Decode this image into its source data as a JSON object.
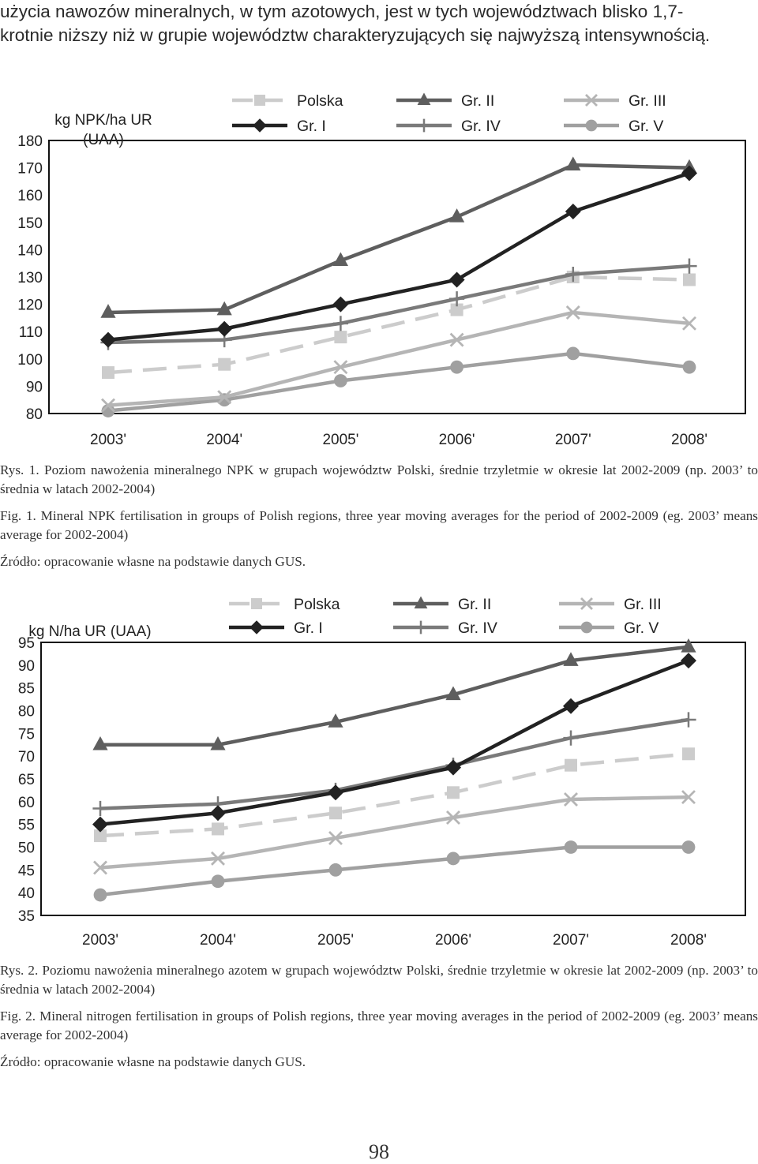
{
  "intro": {
    "line1": "użycia nawozów mineralnych, w tym azotowych, jest w tych województwach blisko 1,7-",
    "line2": "krotnie niższy niż w grupie województw charakteryzujących się najwyższą intensywnością."
  },
  "caption1": {
    "pl": "Rys. 1. Poziom nawożenia mineralnego NPK w grupach województw Polski, średnie trzyletmie w okresie lat 2002-2009 (np. 2003’ to średnia w latach 2002-2004)",
    "en": "Fig. 1. Mineral NPK fertilisation in groups of Polish regions, three year moving averages for the period of 2002-2009 (eg. 2003’ means average for 2002-2004)",
    "source": "Źródło: opracowanie własne na podstawie danych GUS."
  },
  "caption2": {
    "pl": "Rys. 2. Poziomu nawożenia mineralnego azotem w grupach województw Polski, średnie trzyletmie w okresie lat 2002-2009 (np. 2003’ to średnia w latach 2002-2004)",
    "en": "Fig. 2. Mineral nitrogen fertilisation in groups of Polish regions, three year moving averages in the period of 2002-2009 (eg. 2003’ means average for 2002-2004)",
    "source": "Źródło: opracowanie własne na podstawie danych GUS."
  },
  "page_number": "98",
  "series_style": [
    {
      "color": "#cccccc",
      "marker": "square",
      "dash": true
    },
    {
      "color": "#222222",
      "marker": "diamond",
      "dash": false
    },
    {
      "color": "#5e5e5e",
      "marker": "triangle",
      "dash": false
    },
    {
      "color": "#7a7a7a",
      "marker": "plus",
      "dash": false
    },
    {
      "color": "#b5b5b5",
      "marker": "x",
      "dash": false
    },
    {
      "color": "#a0a0a0",
      "marker": "circle",
      "dash": false
    }
  ],
  "chart_data": [
    {
      "type": "line",
      "ylabel_line1": "kg NPK/ha UR",
      "ylabel_line2": "(UAA)",
      "ylim": [
        80,
        180
      ],
      "yticks": [
        80,
        90,
        100,
        110,
        120,
        130,
        140,
        150,
        160,
        170,
        180
      ],
      "categories": [
        "2003'",
        "2004'",
        "2005'",
        "2006'",
        "2007'",
        "2008'"
      ],
      "grid": false,
      "legend": "top",
      "series": [
        {
          "name": "Polska",
          "values": [
            95,
            98,
            108,
            118,
            130,
            129
          ]
        },
        {
          "name": "Gr. I",
          "values": [
            107,
            111,
            120,
            129,
            154,
            168
          ]
        },
        {
          "name": "Gr. II",
          "values": [
            117,
            118,
            136,
            152,
            171,
            170
          ]
        },
        {
          "name": "Gr. IV",
          "values": [
            106,
            107,
            113,
            122,
            131,
            134
          ]
        },
        {
          "name": "Gr. III",
          "values": [
            83,
            86,
            97,
            107,
            117,
            113
          ]
        },
        {
          "name": "Gr. V",
          "values": [
            81,
            85,
            92,
            97,
            102,
            97
          ]
        }
      ]
    },
    {
      "type": "line",
      "ylabel_line1": "kg N/ha UR (UAA)",
      "ylabel_line2": "",
      "ylim": [
        35,
        95
      ],
      "yticks": [
        35,
        40,
        45,
        50,
        55,
        60,
        65,
        70,
        75,
        80,
        85,
        90,
        95
      ],
      "categories": [
        "2003'",
        "2004'",
        "2005'",
        "2006'",
        "2007'",
        "2008'"
      ],
      "grid": false,
      "legend": "top",
      "series": [
        {
          "name": "Polska",
          "values": [
            52.5,
            54,
            57.5,
            62,
            68,
            70.5
          ]
        },
        {
          "name": "Gr. I",
          "values": [
            55,
            57.5,
            62,
            67.5,
            81,
            91
          ]
        },
        {
          "name": "Gr. II",
          "values": [
            72.5,
            72.5,
            77.5,
            83.5,
            91,
            94
          ]
        },
        {
          "name": "Gr. IV",
          "values": [
            58.5,
            59.5,
            62.5,
            68,
            74,
            78
          ]
        },
        {
          "name": "Gr. III",
          "values": [
            45.5,
            47.5,
            52,
            56.5,
            60.5,
            61
          ]
        },
        {
          "name": "Gr. V",
          "values": [
            39.5,
            42.5,
            45,
            47.5,
            50,
            50
          ]
        }
      ]
    }
  ]
}
